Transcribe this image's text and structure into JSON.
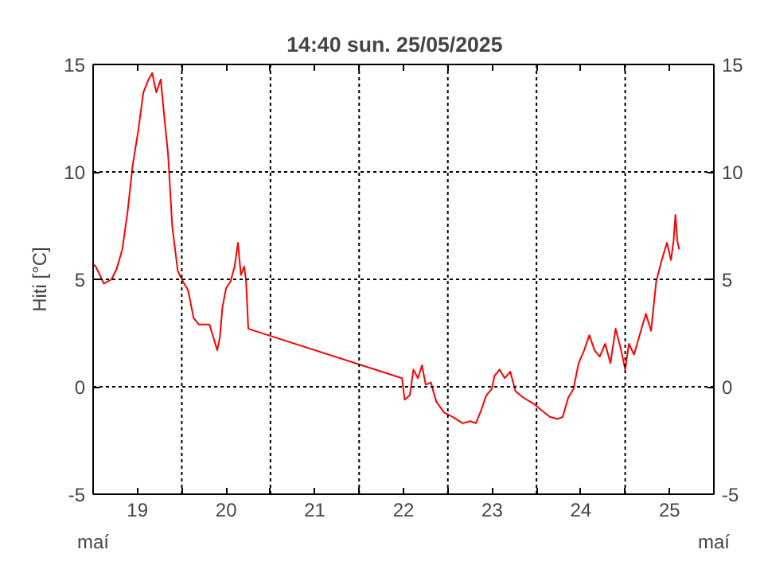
{
  "chart_data": {
    "type": "line",
    "title": "14:40   sun.  25/05/2025",
    "ylabel": "Hiti [°C]",
    "annotations": [
      "maí",
      "maí"
    ],
    "x": [
      "2025-05-19T00:00",
      "2025-05-19T00:42",
      "2025-05-19T02:54",
      "2025-05-19T05:00",
      "2025-05-19T06:24",
      "2025-05-19T07:54",
      "2025-05-19T09:18",
      "2025-05-19T10:42",
      "2025-05-19T12:12",
      "2025-05-19T13:36",
      "2025-05-19T15:00",
      "2025-05-19T16:00",
      "2025-05-19T17:06",
      "2025-05-19T18:18",
      "2025-05-19T19:18",
      "2025-05-19T20:18",
      "2025-05-19T21:24",
      "2025-05-19T22:54",
      "2025-05-20T00:18",
      "2025-05-20T01:42",
      "2025-05-20T03:12",
      "2025-05-20T04:36",
      "2025-05-20T07:30",
      "2025-05-20T08:54",
      "2025-05-20T09:36",
      "2025-05-20T10:18",
      "2025-05-20T11:00",
      "2025-05-20T12:00",
      "2025-05-20T13:12",
      "2025-05-20T14:18",
      "2025-05-20T15:12",
      "2025-05-20T16:00",
      "2025-05-20T16:54",
      "2025-05-20T17:24",
      "2025-05-20T18:00",
      "2025-05-22T11:36",
      "2025-05-22T12:18",
      "2025-05-22T13:42",
      "2025-05-22T14:42",
      "2025-05-22T15:54",
      "2025-05-22T17:00",
      "2025-05-22T18:00",
      "2025-05-22T19:24",
      "2025-05-22T20:54",
      "2025-05-22T23:00",
      "2025-05-23T01:18",
      "2025-05-23T04:00",
      "2025-05-23T06:06",
      "2025-05-23T07:36",
      "2025-05-23T09:00",
      "2025-05-23T10:24",
      "2025-05-23T11:54",
      "2025-05-23T12:36",
      "2025-05-23T14:00",
      "2025-05-23T15:24",
      "2025-05-23T16:54",
      "2025-05-23T18:18",
      "2025-05-23T20:24",
      "2025-05-23T23:18",
      "2025-05-24T01:24",
      "2025-05-24T03:36",
      "2025-05-24T05:42",
      "2025-05-24T07:06",
      "2025-05-24T08:36",
      "2025-05-24T10:00",
      "2025-05-24T11:24",
      "2025-05-24T12:54",
      "2025-05-24T14:18",
      "2025-05-24T15:42",
      "2025-05-24T17:06",
      "2025-05-24T18:36",
      "2025-05-24T20:00",
      "2025-05-24T21:24",
      "2025-05-24T22:54",
      "2025-05-25T00:00",
      "2025-05-25T01:00",
      "2025-05-25T02:24",
      "2025-05-25T03:54",
      "2025-05-25T05:36",
      "2025-05-25T07:00",
      "2025-05-25T08:24",
      "2025-05-25T09:54",
      "2025-05-25T11:18",
      "2025-05-25T12:24",
      "2025-05-25T13:06",
      "2025-05-25T13:36",
      "2025-05-25T14:06",
      "2025-05-25T14:36"
    ],
    "series": [
      {
        "color": "#ff0000",
        "values": [
          5.7,
          5.6,
          4.8,
          5.0,
          5.5,
          6.4,
          8.1,
          10.3,
          11.9,
          13.7,
          14.3,
          14.6,
          13.7,
          14.3,
          12.5,
          10.8,
          7.5,
          5.4,
          4.9,
          4.5,
          3.2,
          2.9,
          2.9,
          2.1,
          1.7,
          2.3,
          3.7,
          4.6,
          4.9,
          5.6,
          6.7,
          5.2,
          5.6,
          4.9,
          2.7,
          0.4,
          -0.6,
          -0.4,
          0.8,
          0.4,
          1.0,
          0.1,
          0.2,
          -0.7,
          -1.2,
          -1.4,
          -1.7,
          -1.6,
          -1.7,
          -1.1,
          -0.4,
          -0.1,
          0.5,
          0.8,
          0.4,
          0.7,
          -0.2,
          -0.5,
          -0.8,
          -1.1,
          -1.4,
          -1.5,
          -1.4,
          -0.5,
          -0.1,
          1.1,
          1.7,
          2.4,
          1.7,
          1.4,
          2.0,
          1.1,
          2.7,
          1.7,
          0.8,
          2.0,
          1.5,
          2.4,
          3.4,
          2.6,
          4.9,
          5.9,
          6.7,
          5.9,
          6.8,
          8.0,
          6.8,
          6.4
        ]
      }
    ],
    "xlim": [
      "2025-05-19T00:00",
      "2025-05-26T00:00"
    ],
    "xticks": [
      {
        "value": "2025-05-19T00:00",
        "label": null
      },
      {
        "value": "2025-05-19T12:00",
        "label": "19"
      },
      {
        "value": "2025-05-20T00:00",
        "label": null
      },
      {
        "value": "2025-05-20T12:00",
        "label": "20"
      },
      {
        "value": "2025-05-21T00:00",
        "label": null
      },
      {
        "value": "2025-05-21T12:00",
        "label": "21"
      },
      {
        "value": "2025-05-22T00:00",
        "label": null
      },
      {
        "value": "2025-05-22T12:00",
        "label": "22"
      },
      {
        "value": "2025-05-23T00:00",
        "label": null
      },
      {
        "value": "2025-05-23T12:00",
        "label": "23"
      },
      {
        "value": "2025-05-24T00:00",
        "label": null
      },
      {
        "value": "2025-05-24T12:00",
        "label": "24"
      },
      {
        "value": "2025-05-25T00:00",
        "label": null
      },
      {
        "value": "2025-05-25T12:00",
        "label": "25"
      },
      {
        "value": "2025-05-26T00:00",
        "label": null
      }
    ],
    "ylim": [
      -5,
      15
    ],
    "yticks": [
      -5,
      0,
      5,
      10,
      15
    ],
    "y2lim": [
      -5,
      15
    ],
    "y2ticks": [
      -5,
      0,
      5,
      10,
      15
    ],
    "grid": true,
    "line_style": "solid",
    "marker": "none"
  }
}
